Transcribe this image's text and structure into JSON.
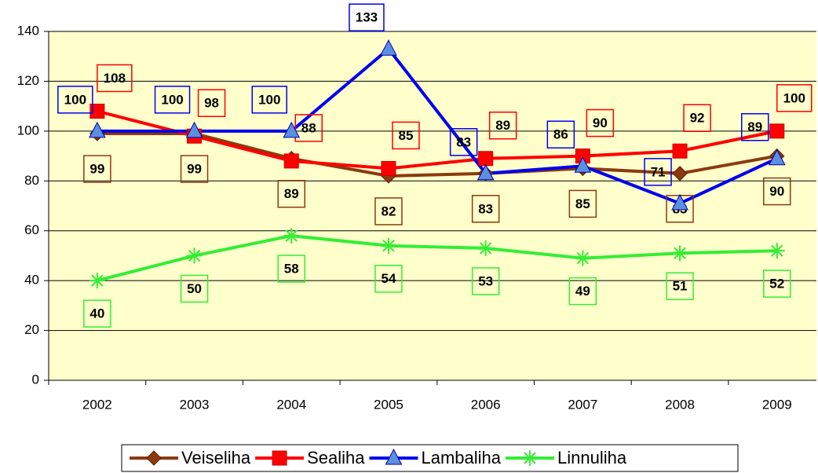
{
  "chart_data": {
    "type": "line",
    "categories": [
      "2002",
      "2003",
      "2004",
      "2005",
      "2006",
      "2007",
      "2008",
      "2009"
    ],
    "series": [
      {
        "name": "Veiseliha",
        "color": "#8b3a0f",
        "marker": "diamond",
        "values": [
          99,
          99,
          89,
          82,
          83,
          85,
          83,
          90
        ]
      },
      {
        "name": "Sealiha",
        "color": "#ff0000",
        "marker": "square",
        "values": [
          108,
          98,
          88,
          85,
          89,
          90,
          92,
          100
        ]
      },
      {
        "name": "Lambaliha",
        "color": "#0000ee",
        "marker": "triangle",
        "values": [
          100,
          100,
          100,
          133,
          83,
          86,
          71,
          89
        ]
      },
      {
        "name": "Linnuliha",
        "color": "#33ee33",
        "marker": "star",
        "values": [
          40,
          50,
          58,
          54,
          53,
          49,
          51,
          52
        ]
      }
    ],
    "ylim": [
      0,
      140
    ],
    "yticks": [
      0,
      20,
      40,
      60,
      80,
      100,
      120,
      140
    ],
    "grid": true,
    "legend": "bottom"
  }
}
